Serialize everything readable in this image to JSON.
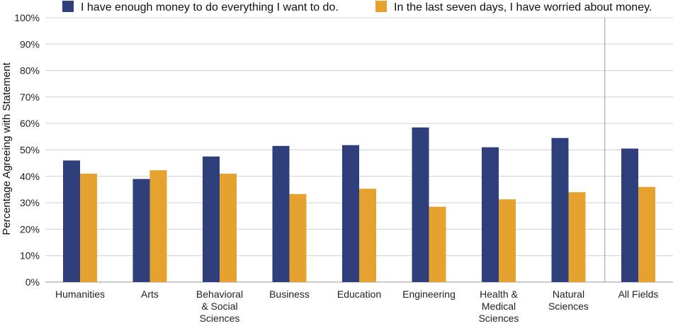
{
  "chart_data": {
    "type": "bar",
    "title": "",
    "xlabel": "",
    "ylabel": "Percentage Agreeing with Statement",
    "ylim": [
      0,
      100
    ],
    "yticks": [
      "0%",
      "10%",
      "20%",
      "30%",
      "40%",
      "50%",
      "60%",
      "70%",
      "80%",
      "90%",
      "100%"
    ],
    "grid": true,
    "legend_position": "top",
    "categories": [
      [
        "Humanities"
      ],
      [
        "Arts"
      ],
      [
        "Behavioral",
        "& Social",
        "Sciences"
      ],
      [
        "Business"
      ],
      [
        "Education"
      ],
      [
        "Engineering"
      ],
      [
        "Health &",
        "Medical",
        "Sciences"
      ],
      [
        "Natural",
        "Sciences"
      ],
      [
        "All Fields"
      ]
    ],
    "series": [
      {
        "name": "I have enough money to do everything I want to do.",
        "color": "#2e3f7c",
        "values": [
          46,
          39,
          47.5,
          51.5,
          51.8,
          58.5,
          51,
          54.5,
          50.5
        ]
      },
      {
        "name": "In the last seven days, I have worried about money.",
        "color": "#e6a22e",
        "values": [
          41,
          42.3,
          41,
          33.3,
          35.3,
          28.5,
          31.3,
          34,
          36
        ]
      }
    ],
    "separator_before_category": 8
  }
}
